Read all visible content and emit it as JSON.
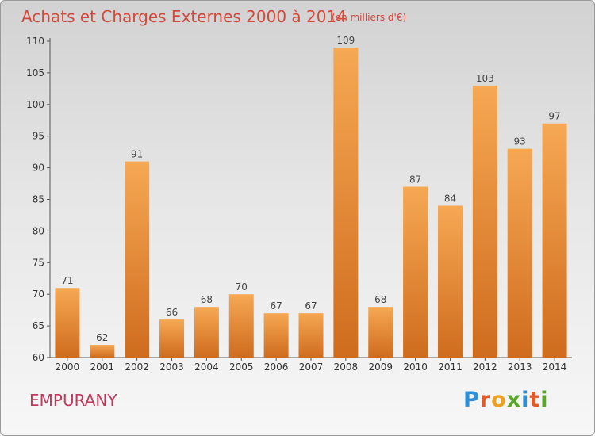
{
  "title": "Achats et Charges Externes 2000 à 2014",
  "unit": "(en milliers d'€)",
  "commune": "EMPURANY",
  "logo": {
    "text": "Proxiti",
    "letters": [
      {
        "char": "P",
        "color": "#2f8fd6"
      },
      {
        "char": "r",
        "color": "#e05a2a"
      },
      {
        "char": "o",
        "color": "#f0a020"
      },
      {
        "char": "x",
        "color": "#5aa52a"
      },
      {
        "char": "i",
        "color": "#2f8fd6"
      },
      {
        "char": "t",
        "color": "#e05a2a"
      },
      {
        "char": "i",
        "color": "#5aa52a"
      }
    ]
  },
  "chart_data": {
    "type": "bar",
    "title": "Achats et Charges Externes 2000 à 2014",
    "subtitle": "(en milliers d'€)",
    "categories": [
      "2000",
      "2001",
      "2002",
      "2003",
      "2004",
      "2005",
      "2006",
      "2007",
      "2008",
      "2009",
      "2010",
      "2011",
      "2012",
      "2013",
      "2014"
    ],
    "values": [
      71,
      62,
      91,
      66,
      68,
      70,
      67,
      67,
      109,
      68,
      87,
      84,
      103,
      93,
      97
    ],
    "ylim": [
      60,
      110
    ],
    "yticks": [
      60,
      65,
      70,
      75,
      80,
      85,
      90,
      95,
      100,
      105,
      110
    ],
    "xlabel": "",
    "ylabel": "",
    "grid": false,
    "bar_color_top": "#f6a853",
    "bar_color_bottom": "#cf6c1e"
  }
}
